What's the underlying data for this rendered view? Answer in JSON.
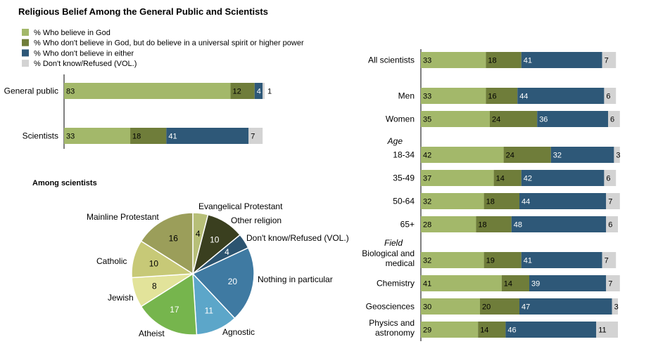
{
  "title": "Religious Belief Among the General Public and Scientists",
  "legend": [
    {
      "label": "% Who believe in God",
      "color": "#a3b86a"
    },
    {
      "label": "% Who don't believe in God, but do believe in a universal spirit or higher power",
      "color": "#6f7d3a"
    },
    {
      "label": "% Who don't believe in either",
      "color": "#2e5878"
    },
    {
      "label": "% Don't know/Refused (VOL.)",
      "color": "#d3d3d3"
    }
  ],
  "chart_data": [
    {
      "type": "bar",
      "stacked": true,
      "orientation": "horizontal",
      "categories": [
        "General public",
        "Scientists"
      ],
      "series": [
        {
          "name": "% Who believe in God",
          "values": [
            83,
            33
          ]
        },
        {
          "name": "% Who don't believe in God, but do believe in a universal spirit or higher power",
          "values": [
            12,
            18
          ]
        },
        {
          "name": "% Who don't believe in either",
          "values": [
            4,
            41
          ]
        },
        {
          "name": "% Don't know/Refused (VOL.)",
          "values": [
            1,
            7
          ]
        }
      ]
    },
    {
      "type": "pie",
      "title": "Among scientists",
      "slices": [
        {
          "label": "Evangelical Protestant",
          "value": 4,
          "color": "#b7bf78"
        },
        {
          "label": "Other religion",
          "value": 10,
          "color": "#3a3f1f"
        },
        {
          "label": "Don't know/Refused (VOL.)",
          "value": 4,
          "color": "#2c5470"
        },
        {
          "label": "Nothing in particular",
          "value": 20,
          "color": "#3f7aa2"
        },
        {
          "label": "Agnostic",
          "value": 11,
          "color": "#5ca6c9"
        },
        {
          "label": "Atheist",
          "value": 17,
          "color": "#76b54d"
        },
        {
          "label": "Jewish",
          "value": 8,
          "color": "#e2e39a"
        },
        {
          "label": "Catholic",
          "value": 10,
          "color": "#c7c977"
        },
        {
          "label": "Mainline Protestant",
          "value": 16,
          "color": "#9b9e5a"
        }
      ]
    },
    {
      "type": "bar",
      "stacked": true,
      "orientation": "horizontal",
      "groups": [
        "Age",
        "Field"
      ],
      "rows": [
        {
          "label": "All scientists",
          "values": [
            33,
            18,
            41,
            7
          ]
        },
        {
          "label": "Men",
          "values": [
            33,
            16,
            44,
            6
          ]
        },
        {
          "label": "Women",
          "values": [
            35,
            24,
            36,
            6
          ]
        },
        {
          "label": "18-34",
          "group": "Age",
          "values": [
            42,
            24,
            32,
            3
          ]
        },
        {
          "label": "35-49",
          "group": "Age",
          "values": [
            37,
            14,
            42,
            6
          ]
        },
        {
          "label": "50-64",
          "group": "Age",
          "values": [
            32,
            18,
            44,
            7
          ]
        },
        {
          "label": "65+",
          "group": "Age",
          "values": [
            28,
            18,
            48,
            6
          ]
        },
        {
          "label": "Biological and medical",
          "group": "Field",
          "values": [
            32,
            19,
            41,
            7
          ]
        },
        {
          "label": "Chemistry",
          "group": "Field",
          "values": [
            41,
            14,
            39,
            7
          ]
        },
        {
          "label": "Geosciences",
          "group": "Field",
          "values": [
            30,
            20,
            47,
            3
          ]
        },
        {
          "label": "Physics and astronomy",
          "group": "Field",
          "values": [
            29,
            14,
            46,
            11
          ]
        }
      ]
    }
  ]
}
